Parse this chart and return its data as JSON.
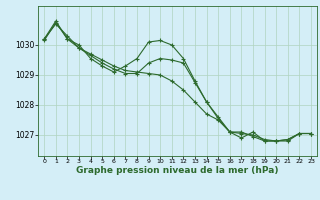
{
  "background_color": "#d4eef7",
  "grid_color": "#b0d4c0",
  "line_color": "#2d6a2d",
  "marker_color": "#2d6a2d",
  "xlabel": "Graphe pression niveau de la mer (hPa)",
  "xlabel_fontsize": 6.5,
  "ylim": [
    1026.3,
    1031.3
  ],
  "xlim": [
    -0.5,
    23.5
  ],
  "yticks": [
    1027,
    1028,
    1029,
    1030
  ],
  "xticks": [
    0,
    1,
    2,
    3,
    4,
    5,
    6,
    7,
    8,
    9,
    10,
    11,
    12,
    13,
    14,
    15,
    16,
    17,
    18,
    19,
    20,
    21,
    22,
    23
  ],
  "series": [
    [
      1030.2,
      1030.7,
      1030.3,
      1029.9,
      1029.7,
      1029.5,
      1029.3,
      1029.15,
      1029.1,
      1029.05,
      1029.0,
      1028.8,
      1028.5,
      1028.1,
      1027.7,
      1027.5,
      1027.1,
      1027.05,
      1027.0,
      1026.85,
      1026.8,
      1026.8,
      1027.05,
      1027.05
    ],
    [
      1030.2,
      1030.8,
      1030.2,
      1030.0,
      1029.55,
      1029.3,
      1029.1,
      1029.3,
      1029.55,
      1030.1,
      1030.15,
      1030.0,
      1029.55,
      1028.8,
      1028.1,
      1027.6,
      1027.1,
      1026.9,
      1027.1,
      1026.8,
      1026.8,
      1026.85,
      1027.05,
      1027.05
    ],
    [
      1030.15,
      1030.75,
      1030.2,
      1029.9,
      1029.65,
      1029.4,
      1029.2,
      1029.05,
      1029.05,
      1029.4,
      1029.55,
      1029.5,
      1029.4,
      1028.75,
      1028.1,
      1027.55,
      1027.1,
      1027.1,
      1026.95,
      1026.8,
      1026.8,
      1026.85,
      1027.05,
      1027.05
    ]
  ]
}
